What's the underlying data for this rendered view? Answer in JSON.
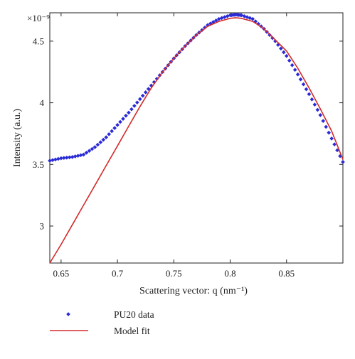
{
  "chart_data": {
    "type": "scatter",
    "title": "",
    "xlabel": "Scattering vector: q (nm⁻¹)",
    "ylabel": "Intensity (a.u.)",
    "y_multiplier": "×10⁻⁹",
    "xlim": [
      0.64,
      0.9
    ],
    "ylim": [
      2.7,
      4.73
    ],
    "x_ticks": [
      0.65,
      0.7,
      0.75,
      0.8,
      0.85
    ],
    "y_ticks": [
      3,
      3.5,
      4,
      4.5
    ],
    "x_tick_labels": [
      "0.65",
      "0.7",
      "0.75",
      "0.8",
      "0.85"
    ],
    "y_tick_labels": [
      "3",
      "3.5",
      "4",
      "4.5"
    ],
    "grid": false,
    "legend_position": "bottom-left, below plot",
    "series": [
      {
        "name": "PU20 data",
        "style": "markers",
        "color": "#2a2ad6",
        "x": [
          0.64,
          0.65,
          0.66,
          0.67,
          0.68,
          0.69,
          0.7,
          0.71,
          0.72,
          0.73,
          0.74,
          0.75,
          0.76,
          0.77,
          0.78,
          0.79,
          0.8,
          0.805,
          0.81,
          0.82,
          0.83,
          0.84,
          0.85,
          0.86,
          0.87,
          0.88,
          0.89,
          0.9
        ],
        "y": [
          3.53,
          3.55,
          3.56,
          3.58,
          3.64,
          3.72,
          3.82,
          3.92,
          4.03,
          4.14,
          4.25,
          4.36,
          4.46,
          4.55,
          4.63,
          4.68,
          4.71,
          4.715,
          4.71,
          4.68,
          4.6,
          4.5,
          4.38,
          4.23,
          4.07,
          3.9,
          3.71,
          3.52
        ]
      },
      {
        "name": "Model fit",
        "style": "line",
        "color": "#d42a2a",
        "x": [
          0.64,
          0.65,
          0.66,
          0.67,
          0.68,
          0.69,
          0.7,
          0.71,
          0.72,
          0.73,
          0.74,
          0.75,
          0.76,
          0.77,
          0.78,
          0.79,
          0.8,
          0.805,
          0.81,
          0.82,
          0.83,
          0.84,
          0.85,
          0.86,
          0.87,
          0.88,
          0.89,
          0.9
        ],
        "y": [
          2.7,
          2.85,
          3.01,
          3.17,
          3.33,
          3.49,
          3.65,
          3.81,
          3.97,
          4.12,
          4.25,
          4.36,
          4.46,
          4.55,
          4.62,
          4.66,
          4.685,
          4.69,
          4.685,
          4.66,
          4.6,
          4.51,
          4.42,
          4.28,
          4.12,
          3.95,
          3.77,
          3.54
        ]
      }
    ]
  }
}
